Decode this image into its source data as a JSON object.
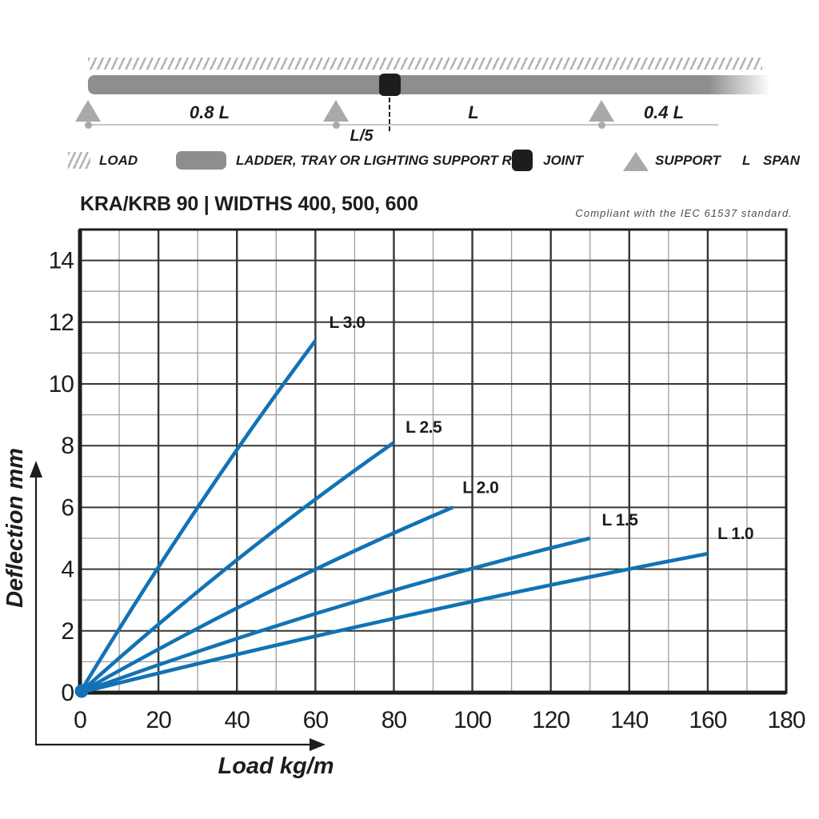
{
  "schematic": {
    "labels": {
      "left_span": "0.8 L",
      "joint_offset": "L/5",
      "mid_span": "L",
      "right_span": "0.4 L"
    }
  },
  "legend": {
    "items": [
      {
        "id": "load",
        "label": "LOAD"
      },
      {
        "id": "rail",
        "label": "LADDER, TRAY OR LIGHTING SUPPORT RAIL"
      },
      {
        "id": "joint",
        "label": "JOINT"
      },
      {
        "id": "support",
        "label": "SUPPORT"
      },
      {
        "id": "span",
        "symbol": "L",
        "label": "SPAN"
      }
    ]
  },
  "header": {
    "title": "KRA/KRB 90 | WIDTHS 400, 500, 600",
    "compliance_note": "Compliant with the IEC 61537 standard."
  },
  "chart_data": {
    "type": "line",
    "title": "KRA/KRB 90 | WIDTHS 400, 500, 600",
    "xlabel": "Load kg/m",
    "ylabel": "Deflection mm",
    "xlim": [
      0,
      180
    ],
    "ylim": [
      0,
      15
    ],
    "x_major_ticks": [
      0,
      20,
      40,
      60,
      80,
      100,
      120,
      140,
      160,
      180
    ],
    "y_major_ticks": [
      0,
      2,
      4,
      6,
      8,
      10,
      12,
      14
    ],
    "x_minor_step": 10,
    "y_minor_step": 1,
    "grid": true,
    "legend_position": "inline-labels",
    "line_color": "#1272b5",
    "grid_major_color": "#373736",
    "grid_minor_color": "#9e9e9d",
    "axis_color": "#1d1d1b",
    "origin_marker": true,
    "series": [
      {
        "name": "L 3.0",
        "points": [
          [
            0,
            0
          ],
          [
            30,
            6.0
          ],
          [
            60,
            11.4
          ]
        ],
        "label_anchor": [
          63.5,
          12.0
        ]
      },
      {
        "name": "L 2.5",
        "points": [
          [
            0,
            0
          ],
          [
            40,
            4.3
          ],
          [
            80,
            8.1
          ]
        ],
        "label_anchor": [
          83,
          8.6
        ]
      },
      {
        "name": "L 2.0",
        "points": [
          [
            0,
            0
          ],
          [
            48,
            3.25
          ],
          [
            95,
            6.0
          ]
        ],
        "label_anchor": [
          97.5,
          6.65
        ]
      },
      {
        "name": "L 1.5",
        "points": [
          [
            0,
            0
          ],
          [
            65,
            2.75
          ],
          [
            130,
            5.0
          ]
        ],
        "label_anchor": [
          133,
          5.6
        ]
      },
      {
        "name": "L 1.0",
        "points": [
          [
            0,
            0
          ],
          [
            80,
            2.4
          ],
          [
            160,
            4.5
          ]
        ],
        "label_anchor": [
          162.5,
          5.15
        ]
      }
    ]
  }
}
